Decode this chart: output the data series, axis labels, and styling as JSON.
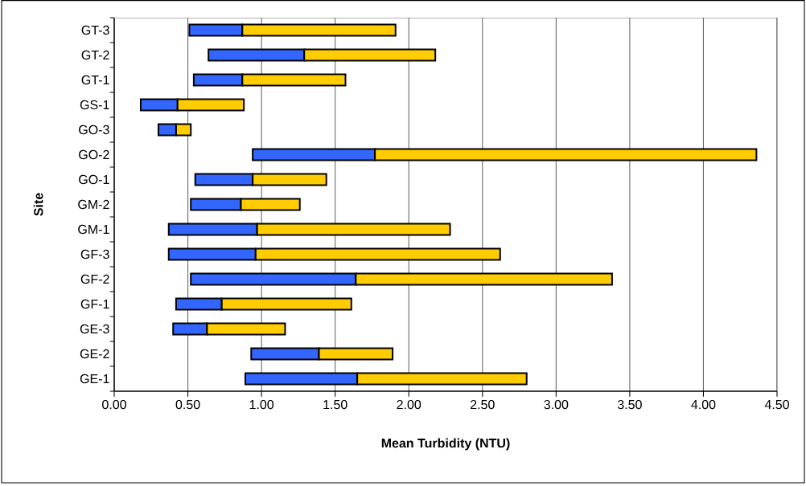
{
  "chart_data": {
    "type": "bar",
    "orientation": "horizontal",
    "xlabel": "Mean Turbidity (NTU)",
    "ylabel": "Site",
    "categories": [
      "GT-3",
      "GT-2",
      "GT-1",
      "GS-1",
      "GO-3",
      "GO-2",
      "GO-1",
      "GM-2",
      "GM-1",
      "GF-3",
      "GF-2",
      "GF-1",
      "GE-3",
      "GE-2",
      "GE-1"
    ],
    "series": [
      {
        "color": "#3366ff",
        "base": [
          0.51,
          0.64,
          0.54,
          0.18,
          0.3,
          0.94,
          0.55,
          0.52,
          0.37,
          0.37,
          0.52,
          0.42,
          0.4,
          0.93,
          0.89
        ],
        "values": [
          0.36,
          0.65,
          0.33,
          0.25,
          0.12,
          0.83,
          0.39,
          0.34,
          0.6,
          0.59,
          1.12,
          0.31,
          0.23,
          0.46,
          0.76
        ]
      },
      {
        "color": "#ffcc00",
        "base": [
          0.87,
          1.29,
          0.87,
          0.43,
          0.42,
          1.77,
          0.94,
          0.86,
          0.97,
          0.96,
          1.64,
          0.73,
          0.63,
          1.39,
          1.65
        ],
        "values": [
          1.04,
          0.89,
          0.7,
          0.45,
          0.1,
          2.59,
          0.5,
          0.4,
          1.31,
          1.66,
          1.74,
          0.88,
          0.53,
          0.5,
          1.15
        ]
      }
    ],
    "xlim": [
      0,
      4.5
    ],
    "xticks": [
      {
        "value": 0,
        "label": "0.00"
      },
      {
        "value": 0.5,
        "label": "0.50"
      },
      {
        "value": 1,
        "label": "1.00"
      },
      {
        "value": 1.5,
        "label": "1.50"
      },
      {
        "value": 2,
        "label": "2.00"
      },
      {
        "value": 2.5,
        "label": "2.50"
      },
      {
        "value": 3,
        "label": "3.00"
      },
      {
        "value": 3.5,
        "label": "3.50"
      },
      {
        "value": 4,
        "label": "4.00"
      },
      {
        "value": 4.5,
        "label": "4.50"
      }
    ],
    "grid": "x"
  }
}
